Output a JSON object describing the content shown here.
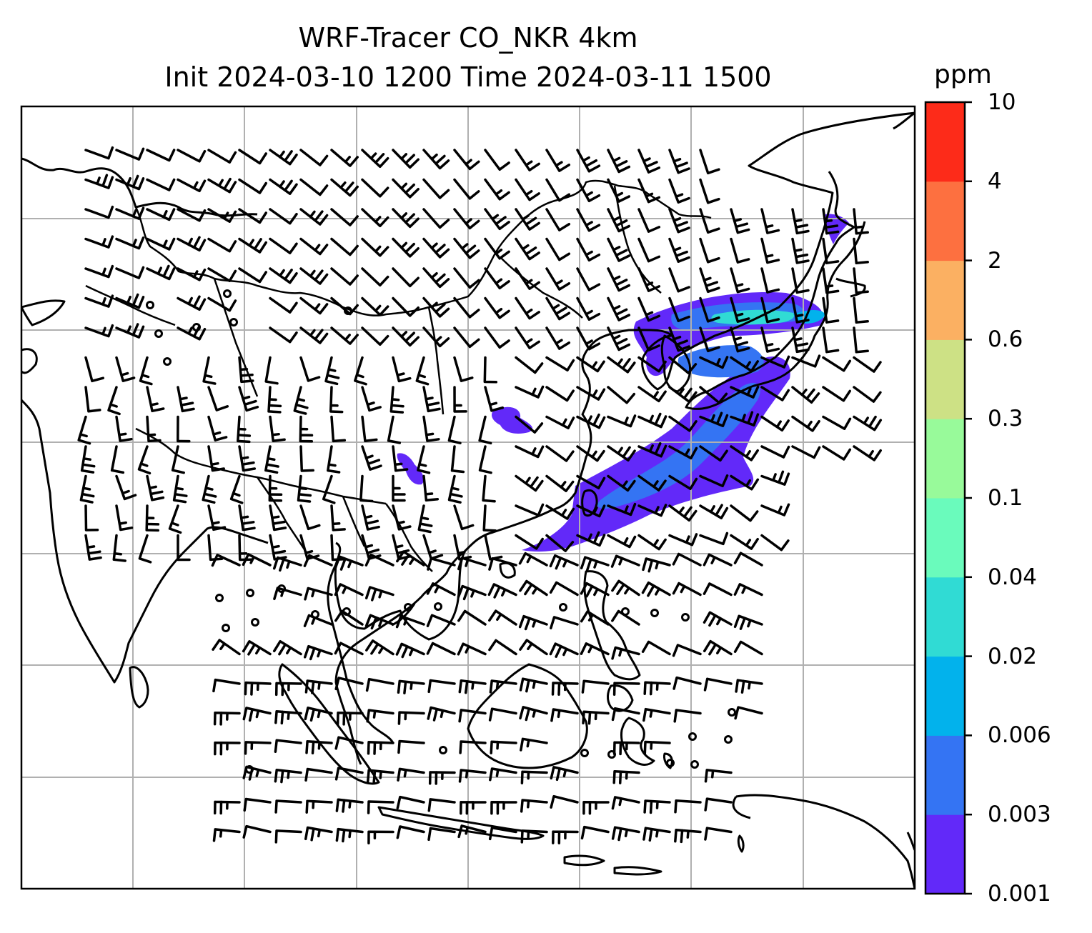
{
  "title": {
    "line1": "WRF-Tracer CO_NKR 4km",
    "line2": "Init 2024-03-10 1200 Time 2024-03-11 1500"
  },
  "colorbar": {
    "unit": "ppm",
    "levels": [
      "0.001",
      "0.003",
      "0.006",
      "0.02",
      "0.04",
      "0.1",
      "0.3",
      "0.6",
      "2",
      "4",
      "10"
    ],
    "colors": [
      "#6229f9",
      "#3474f3",
      "#02b2ec",
      "#30dbd4",
      "#6afbbc",
      "#98fa9a",
      "#cde185",
      "#fbb062",
      "#fd7040",
      "#fd2b19"
    ]
  },
  "map": {
    "gridlines": true,
    "features": [
      "coastlines",
      "country-borders",
      "wind-barbs",
      "CO-tracer-contours"
    ]
  }
}
